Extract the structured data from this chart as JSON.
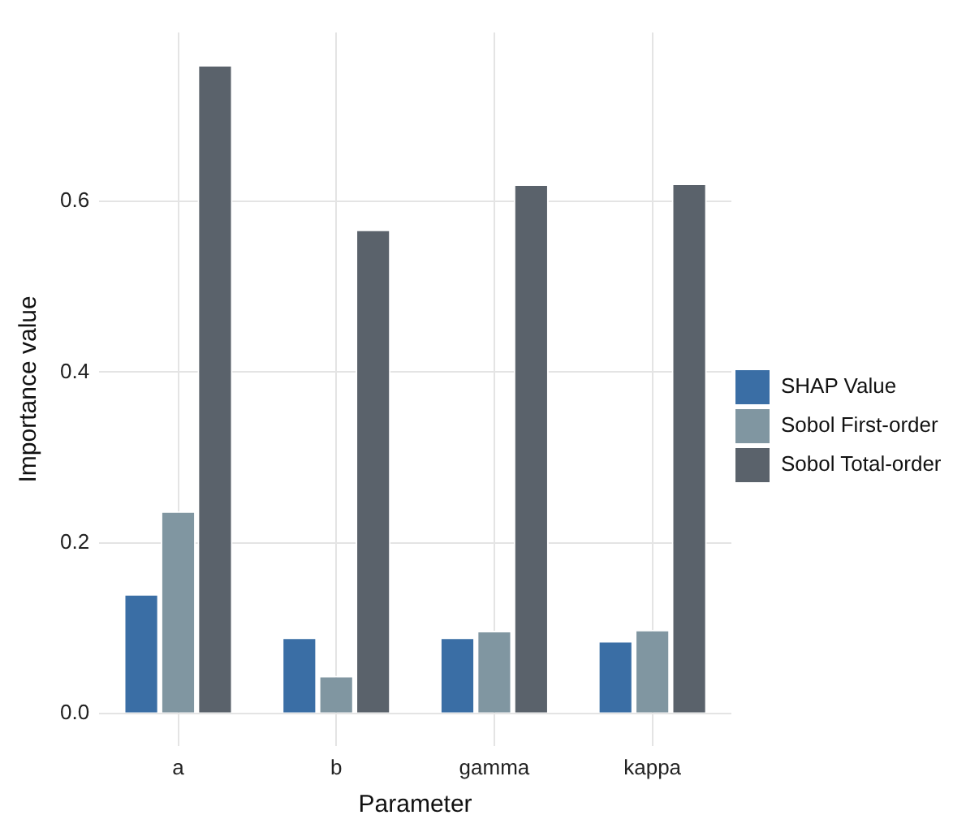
{
  "chart_data": {
    "type": "bar",
    "xlabel": "Parameter",
    "ylabel": "Importance value",
    "categories": [
      "a",
      "b",
      "gamma",
      "kappa"
    ],
    "series": [
      {
        "name": "SHAP Value",
        "color": "#3a6ea5",
        "values": [
          0.14,
          0.089,
          0.089,
          0.085
        ]
      },
      {
        "name": "Sobol First-order",
        "color": "#8096a1",
        "values": [
          0.237,
          0.044,
          0.097,
          0.098
        ]
      },
      {
        "name": "Sobol Total-order",
        "color": "#5a626b",
        "values": [
          0.76,
          0.567,
          0.62,
          0.621
        ]
      }
    ],
    "ylim": [
      -0.038,
      0.798
    ],
    "yticks": [
      {
        "value": 0,
        "label": "0.0"
      },
      {
        "value": 0.2,
        "label": "0.2"
      },
      {
        "value": 0.4,
        "label": "0.4"
      },
      {
        "value": 0.6,
        "label": "0.6"
      }
    ],
    "grid": true,
    "legend": "right"
  }
}
